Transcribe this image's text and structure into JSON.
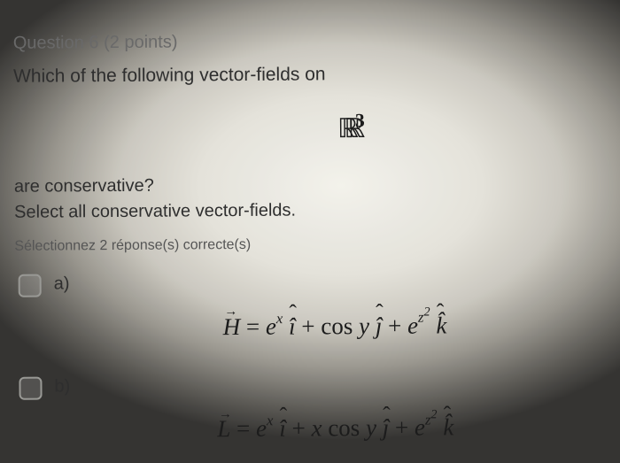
{
  "question": {
    "header_prefix": "Question ",
    "number": "6",
    "points_suffix": " (2 points)",
    "prompt": "Which of the following vector-fields on",
    "space_html": "<span class=\"dbl\">ℝℝ</span><sup>3</sup>",
    "followup": "are conservative?",
    "instruction": "Select all conservative vector-fields.",
    "select_hint": "Sélectionnez 2 réponse(s) correcte(s)"
  },
  "options": [
    {
      "label": "a)",
      "checked": false,
      "formula_html": "<span class=\"vecover\">H</span> <span class=\"rm\">=</span> e<sup>x</sup> <span class=\"hat\">î</span> <span class=\"rm\">+ cos </span>y <span class=\"hat\">ĵ</span> <span class=\"rm\">+</span> e<sup>z<sup>2</sup></sup> <span class=\"hat\">k̂</span>"
    },
    {
      "label": "b)",
      "checked": false,
      "formula_html": "<span class=\"vecover\">L</span> <span class=\"rm\">=</span> e<sup>x</sup> <span class=\"hat\">î</span> <span class=\"rm\">+</span> x <span class=\"rm\">cos </span>y <span class=\"hat\">ĵ</span> <span class=\"rm\">+</span> e<sup>z<sup>2</sup></sup> <span class=\"hat\">k̂</span>"
    }
  ],
  "style": {
    "bg_vignette_center": "#f8f7f0",
    "bg_vignette_edge": "#343331",
    "checkbox_border": "#9b9b97",
    "text_color": "#2d2d2d",
    "header_color": "#6a6a6a",
    "font_family": "Arial, Helvetica, sans-serif",
    "formula_font": "Times New Roman"
  }
}
